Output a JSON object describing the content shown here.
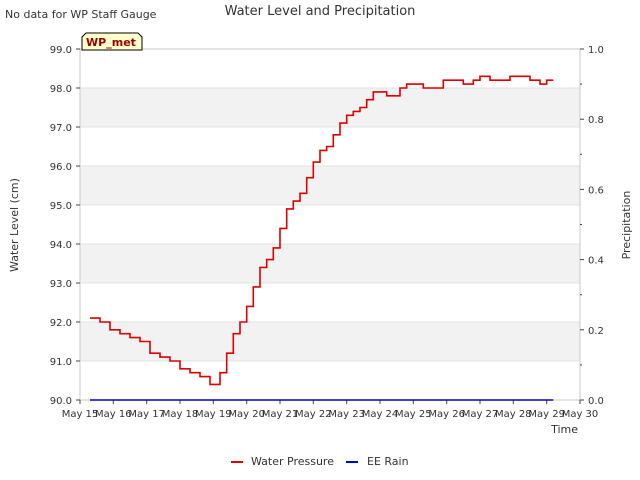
{
  "note": "No data for WP Staff Gauge",
  "chart_data": {
    "type": "line",
    "title": "Water Level and Precipitation",
    "xlabel": "Time",
    "ylabel": "Water Level (cm)",
    "y2label": "Precipitation",
    "badge": "WP_met",
    "x_ticks": [
      "May 15",
      "May 16",
      "May 17",
      "May 18",
      "May 19",
      "May 20",
      "May 21",
      "May 22",
      "May 23",
      "May 24",
      "May 25",
      "May 26",
      "May 27",
      "May 28",
      "May 29",
      "May 30"
    ],
    "y_ticks": [
      "90.0",
      "91.0",
      "92.0",
      "93.0",
      "94.0",
      "95.0",
      "96.0",
      "97.0",
      "98.0",
      "99.0"
    ],
    "y2_ticks": [
      "0.0",
      "0.2",
      "0.4",
      "0.6",
      "0.8",
      "1.0"
    ],
    "xlim_days": [
      15,
      30
    ],
    "ylim": [
      90,
      99
    ],
    "y2lim": [
      0,
      1
    ],
    "grid": "horizontal bands",
    "legend_position": "bottom-center",
    "colors": {
      "water_pressure": "#dd0000",
      "ee_rain": "#0000cc",
      "band": "#f2f2f2",
      "badge_bg": "#ffffcc",
      "badge_text": "#990000"
    },
    "series": [
      {
        "name": "Water Pressure",
        "x": [
          15.3,
          15.6,
          15.9,
          16.2,
          16.5,
          16.8,
          17.1,
          17.4,
          17.7,
          18.0,
          18.3,
          18.6,
          18.9,
          19.0,
          19.2,
          19.4,
          19.6,
          19.8,
          20.0,
          20.2,
          20.4,
          20.6,
          20.8,
          21.0,
          21.2,
          21.4,
          21.6,
          21.8,
          22.0,
          22.2,
          22.4,
          22.6,
          22.8,
          23.0,
          23.2,
          23.4,
          23.6,
          23.8,
          24.0,
          24.2,
          24.4,
          24.6,
          24.8,
          25.0,
          25.3,
          25.6,
          25.9,
          26.2,
          26.5,
          26.8,
          27.0,
          27.3,
          27.6,
          27.9,
          28.2,
          28.5,
          28.8,
          29.0,
          29.2
        ],
        "values": [
          92.1,
          92.0,
          91.8,
          91.7,
          91.6,
          91.5,
          91.2,
          91.1,
          91.0,
          90.8,
          90.7,
          90.6,
          90.4,
          90.4,
          90.7,
          91.2,
          91.7,
          92.0,
          92.4,
          92.9,
          93.4,
          93.6,
          93.9,
          94.4,
          94.9,
          95.1,
          95.3,
          95.7,
          96.1,
          96.4,
          96.5,
          96.8,
          97.1,
          97.3,
          97.4,
          97.5,
          97.7,
          97.9,
          97.9,
          97.8,
          97.8,
          98.0,
          98.1,
          98.1,
          98.0,
          98.0,
          98.2,
          98.2,
          98.1,
          98.2,
          98.3,
          98.2,
          98.2,
          98.3,
          98.3,
          98.2,
          98.1,
          98.2,
          98.2
        ]
      },
      {
        "name": "EE Rain",
        "x": [
          15.3,
          29.2
        ],
        "values": [
          0,
          0
        ]
      }
    ]
  }
}
